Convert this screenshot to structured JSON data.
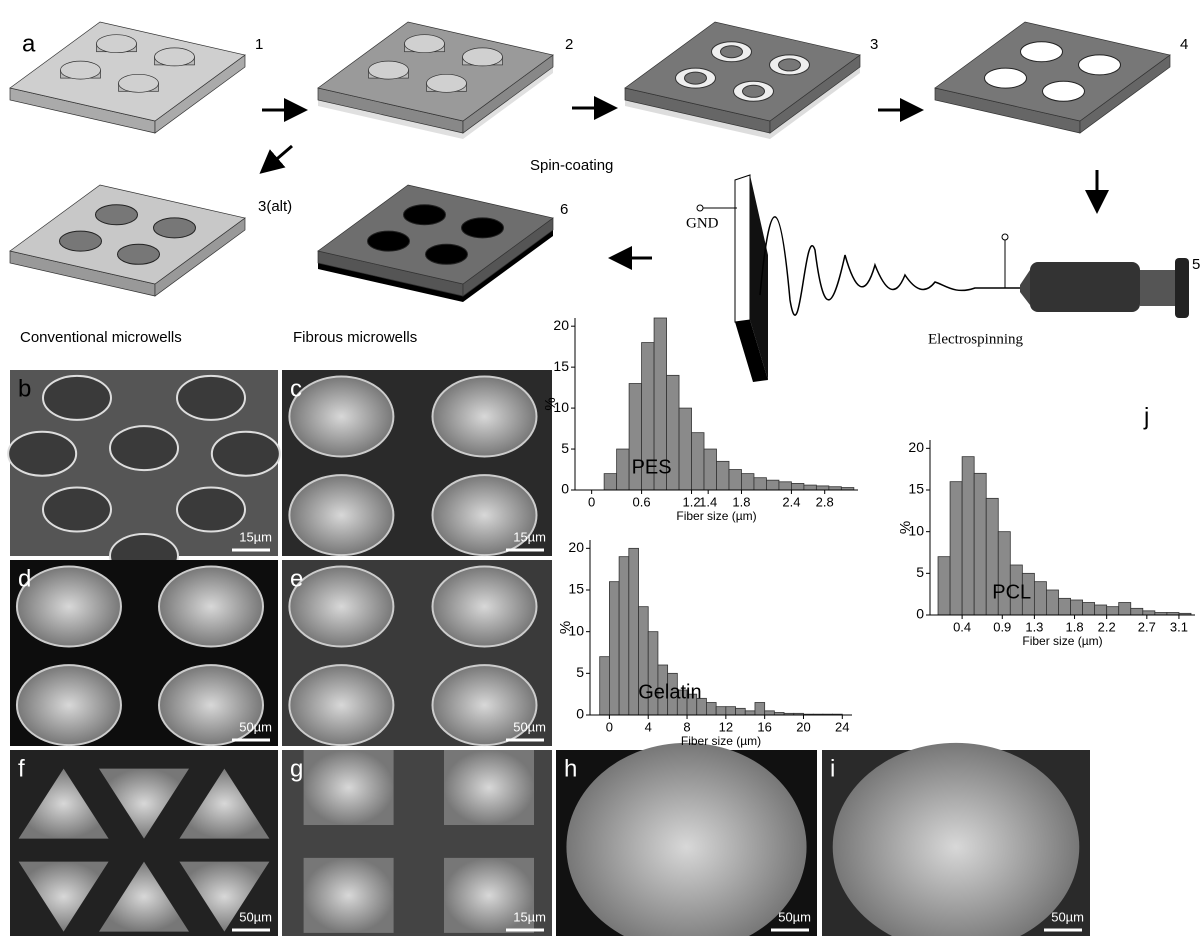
{
  "labels": {
    "a": "a",
    "b": "b",
    "c": "c",
    "d": "d",
    "e": "e",
    "f": "f",
    "g": "g",
    "h": "h",
    "i": "i",
    "j": "j"
  },
  "steps": {
    "s1": "1",
    "s2": "2",
    "s3": "3",
    "s4": "4",
    "s3alt": "3(alt)",
    "s5": "5",
    "s6": "6"
  },
  "captions": {
    "spin": "Spin-coating",
    "conventional": "Conventional microwells",
    "fibrous": "Fibrous microwells",
    "gnd": "GND",
    "electro": "Electrospinning"
  },
  "scale_bars": {
    "b": "15µm",
    "c": "15µm",
    "d": "50µm",
    "e": "50µm",
    "f": "50µm",
    "g": "15µm",
    "h": "50µm",
    "i": "50µm"
  },
  "chart_data": [
    {
      "type": "histogram",
      "annotation": "PES",
      "xlabel": "Fiber size (µm)",
      "ylabel": "%",
      "bins": [
        0.15,
        0.3,
        0.45,
        0.6,
        0.75,
        0.9,
        1.05,
        1.2,
        1.35,
        1.5,
        1.65,
        1.8,
        1.95,
        2.1,
        2.25,
        2.4,
        2.55,
        2.7,
        2.85,
        3.0,
        3.15
      ],
      "counts": [
        2,
        5,
        13,
        18,
        21,
        14,
        10,
        7,
        5,
        3.5,
        2.5,
        2,
        1.5,
        1.2,
        1,
        0.8,
        0.6,
        0.5,
        0.4,
        0.3
      ],
      "xlim": [
        -0.2,
        3.2
      ],
      "xticks": [
        0,
        0.6,
        1.2,
        1.4,
        1.8,
        2.4,
        2.8
      ],
      "ylim": [
        0,
        21
      ],
      "yticks": [
        0,
        5,
        10,
        15,
        20
      ],
      "color": "#8a8a8a"
    },
    {
      "type": "histogram",
      "annotation": "Gelatin",
      "xlabel": "Fiber size (µm)",
      "ylabel": "%",
      "bins": [
        -1,
        0,
        1,
        2,
        3,
        4,
        5,
        6,
        7,
        8,
        9,
        10,
        11,
        12,
        13,
        14,
        15,
        16,
        17,
        18,
        19,
        20,
        21,
        22,
        23,
        24
      ],
      "counts": [
        7,
        16,
        19,
        20,
        13,
        10,
        6,
        5,
        3,
        2.5,
        2,
        1.5,
        1,
        1,
        0.8,
        0.5,
        1.5,
        0.5,
        0.3,
        0.2,
        0.2,
        0.1,
        0.1,
        0.1,
        0.1
      ],
      "xlim": [
        -2,
        25
      ],
      "xticks": [
        0,
        4,
        8,
        12,
        16,
        20,
        24
      ],
      "ylim": [
        0,
        21
      ],
      "yticks": [
        0,
        5,
        10,
        15,
        20
      ],
      "color": "#8a8a8a"
    },
    {
      "type": "histogram",
      "annotation": "PCL",
      "xlabel": "Fiber size (µm)",
      "ylabel": "%",
      "bins": [
        0.1,
        0.25,
        0.4,
        0.55,
        0.7,
        0.85,
        1.0,
        1.15,
        1.3,
        1.45,
        1.6,
        1.75,
        1.9,
        2.05,
        2.2,
        2.35,
        2.5,
        2.65,
        2.8,
        2.95,
        3.1,
        3.25
      ],
      "counts": [
        7,
        16,
        19,
        17,
        14,
        10,
        6,
        5,
        4,
        3,
        2,
        1.8,
        1.5,
        1.2,
        1,
        1.5,
        0.8,
        0.5,
        0.3,
        0.3,
        0.2
      ],
      "xlim": [
        0,
        3.3
      ],
      "xticks": [
        0.4,
        0.9,
        1.3,
        1.8,
        2.2,
        2.7,
        3.1
      ],
      "ylim": [
        0,
        21
      ],
      "yticks": [
        0,
        5,
        10,
        15,
        20
      ],
      "color": "#8a8a8a"
    }
  ]
}
